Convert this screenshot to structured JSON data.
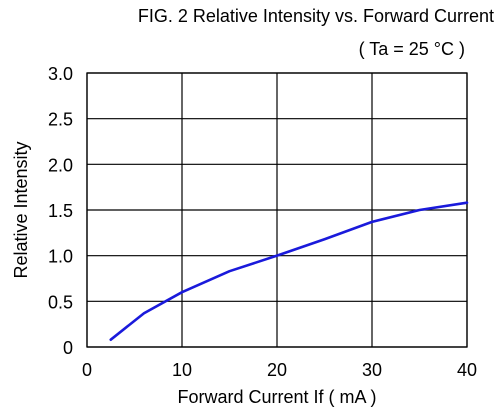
{
  "chart_data": {
    "type": "line",
    "title": "FIG. 2   Relative Intensity vs. Forward Current",
    "subtitle": "( Ta = 25 °C )",
    "xlabel": "Forward Current If ( mA )",
    "ylabel": "Relative Intensity",
    "xlim": [
      0,
      40
    ],
    "ylim": [
      0,
      3.0
    ],
    "grid": true,
    "x_ticks": [
      "0",
      "10",
      "20",
      "30",
      "40"
    ],
    "y_ticks": [
      "0",
      "0.5",
      "1.0",
      "1.5",
      "2.0",
      "2.5",
      "3.0"
    ],
    "series": [
      {
        "color": "#1a1adb",
        "x": [
          2.5,
          6,
          10,
          15,
          20,
          25,
          30,
          35,
          40
        ],
        "y": [
          0.08,
          0.37,
          0.6,
          0.83,
          1.0,
          1.18,
          1.37,
          1.5,
          1.58
        ]
      }
    ]
  }
}
